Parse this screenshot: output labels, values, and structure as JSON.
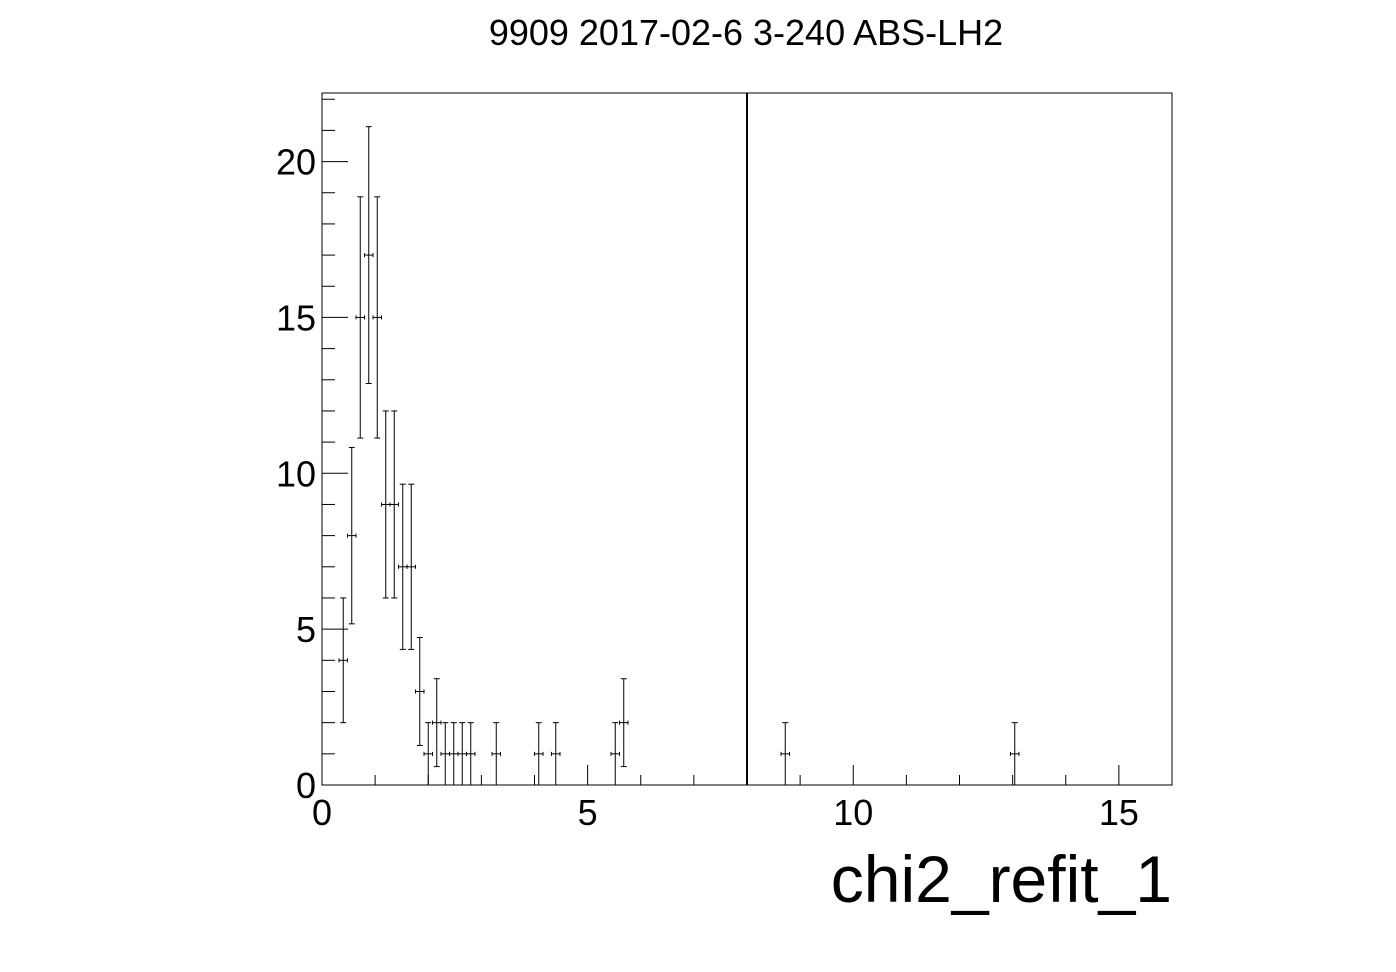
{
  "chart_data": {
    "type": "scatter",
    "title": "9909 2017-02-6 3-240 ABS-LH2",
    "xlabel": "chi2_refit_1",
    "ylabel": "",
    "xlim": [
      0,
      16
    ],
    "ylim": [
      0,
      22.2
    ],
    "x_ticks": [
      "0",
      "5",
      "10",
      "15"
    ],
    "y_ticks": [
      "0",
      "5",
      "10",
      "15",
      "20"
    ],
    "grid": false,
    "bin_width": 0.16,
    "cut_line_x": 8,
    "points": [
      {
        "x": 0.4,
        "y": 4,
        "err": 2.0
      },
      {
        "x": 0.56,
        "y": 8,
        "err": 2.83
      },
      {
        "x": 0.72,
        "y": 15,
        "err": 3.87
      },
      {
        "x": 0.88,
        "y": 17,
        "err": 4.12
      },
      {
        "x": 1.04,
        "y": 15,
        "err": 3.87
      },
      {
        "x": 1.2,
        "y": 9,
        "err": 3.0
      },
      {
        "x": 1.36,
        "y": 9,
        "err": 3.0
      },
      {
        "x": 1.52,
        "y": 7,
        "err": 2.65
      },
      {
        "x": 1.68,
        "y": 7,
        "err": 2.65
      },
      {
        "x": 1.84,
        "y": 3,
        "err": 1.73
      },
      {
        "x": 2.0,
        "y": 1,
        "err": 1.0
      },
      {
        "x": 2.16,
        "y": 2,
        "err": 1.41
      },
      {
        "x": 2.32,
        "y": 1,
        "err": 1.0
      },
      {
        "x": 2.48,
        "y": 1,
        "err": 1.0
      },
      {
        "x": 2.64,
        "y": 1,
        "err": 1.0
      },
      {
        "x": 2.8,
        "y": 1,
        "err": 1.0
      },
      {
        "x": 3.28,
        "y": 1,
        "err": 1.0
      },
      {
        "x": 4.08,
        "y": 1,
        "err": 1.0
      },
      {
        "x": 4.4,
        "y": 1,
        "err": 1.0
      },
      {
        "x": 5.52,
        "y": 1,
        "err": 1.0
      },
      {
        "x": 5.68,
        "y": 2,
        "err": 1.41
      },
      {
        "x": 8.72,
        "y": 1,
        "err": 1.0
      },
      {
        "x": 13.04,
        "y": 1,
        "err": 1.0
      }
    ]
  }
}
